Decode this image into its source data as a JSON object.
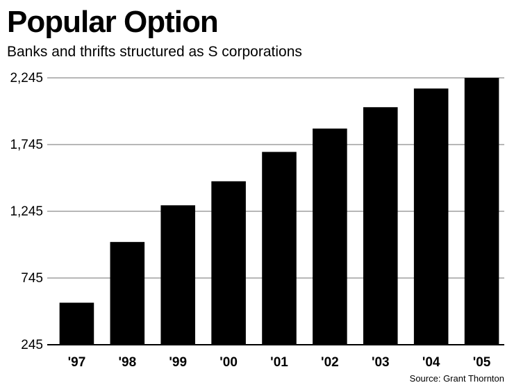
{
  "chart_data": {
    "type": "bar",
    "title": "Popular Option",
    "subtitle": "Banks and thrifts structured as S corporations",
    "categories": [
      "'97",
      "'98",
      "'99",
      "'00",
      "'01",
      "'02",
      "'03",
      "'04",
      "'05"
    ],
    "values": [
      560,
      1015,
      1290,
      1470,
      1690,
      1865,
      2025,
      2165,
      2245
    ],
    "yticks": [
      245,
      745,
      1245,
      1745,
      2245
    ],
    "ytick_labels": [
      "245",
      "745",
      "1,245",
      "1,745",
      "2,245"
    ],
    "ylim": [
      245,
      2245
    ],
    "xlabel": "",
    "ylabel": "",
    "grid": true,
    "bar_color": "#000000",
    "grid_color": "#8c8c8c",
    "source": "Source: Grant Thornton"
  }
}
